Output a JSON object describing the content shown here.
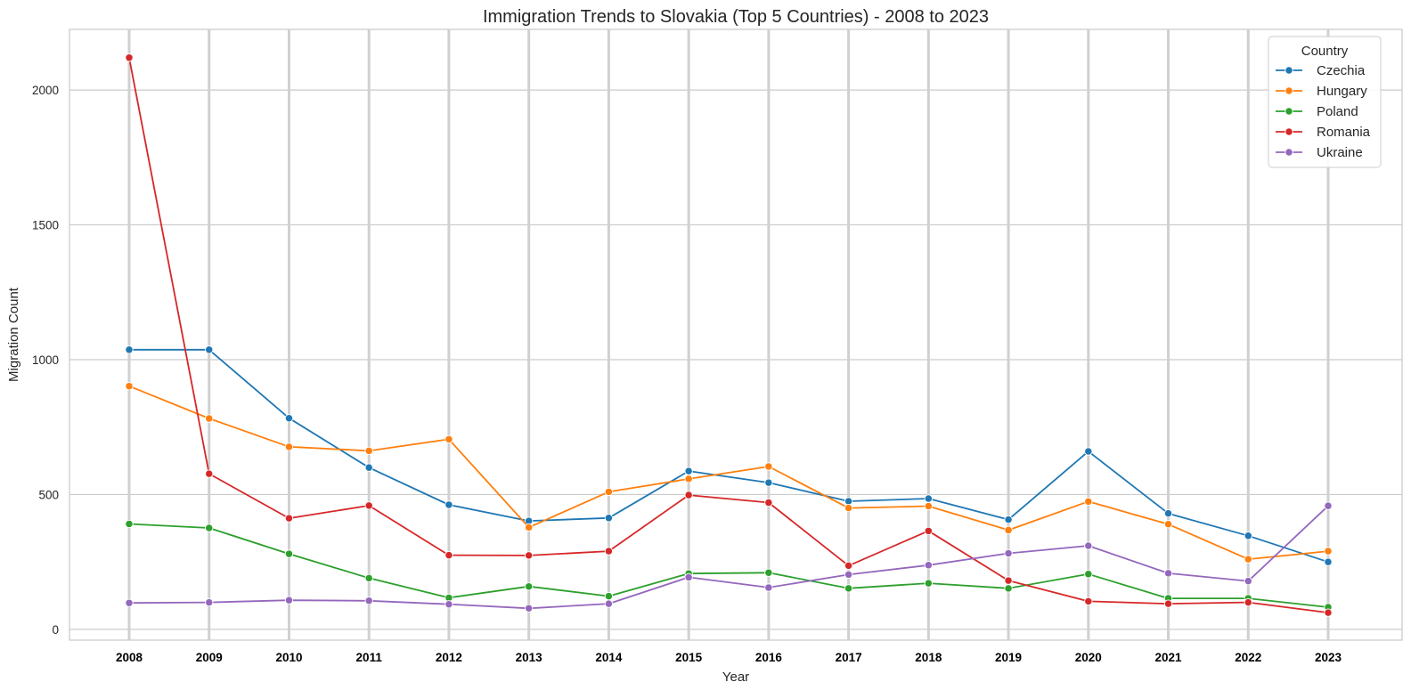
{
  "chart_data": {
    "type": "line",
    "title": "Immigration Trends to Slovakia (Top 5 Countries) - 2008 to 2023",
    "xlabel": "Year",
    "ylabel": "Migration Count",
    "x": [
      2008,
      2009,
      2010,
      2011,
      2012,
      2013,
      2014,
      2015,
      2016,
      2017,
      2018,
      2019,
      2020,
      2021,
      2022,
      2023
    ],
    "xticklabels": [
      "2008",
      "2009",
      "2010",
      "2011",
      "2012",
      "2013",
      "2014",
      "2015",
      "2016",
      "2017",
      "2018",
      "2019",
      "2020",
      "2021",
      "2022",
      "2023"
    ],
    "yticks": [
      0,
      500,
      1000,
      1500,
      2000
    ],
    "yticklabels": [
      "0",
      "500",
      "1000",
      "1500",
      "2000"
    ],
    "ylim": [
      -40,
      2225
    ],
    "grid": true,
    "legend": {
      "title": "Country",
      "position": "top-right"
    },
    "series": [
      {
        "name": "Czechia",
        "color": "#1f77b4",
        "values": [
          1037,
          1037,
          783,
          600,
          462,
          402,
          413,
          587,
          544,
          475,
          485,
          407,
          660,
          430,
          347,
          250
        ]
      },
      {
        "name": "Hungary",
        "color": "#ff7f0e",
        "values": [
          902,
          782,
          677,
          662,
          705,
          378,
          510,
          558,
          604,
          450,
          457,
          368,
          474,
          390,
          260,
          290
        ]
      },
      {
        "name": "Poland",
        "color": "#2ca02c",
        "values": [
          391,
          376,
          280,
          190,
          117,
          159,
          123,
          207,
          210,
          152,
          171,
          152,
          205,
          115,
          115,
          82
        ]
      },
      {
        "name": "Romania",
        "color": "#d62728",
        "values": [
          2120,
          577,
          412,
          459,
          275,
          274,
          290,
          498,
          470,
          236,
          365,
          181,
          104,
          95,
          100,
          62
        ]
      },
      {
        "name": "Ukraine",
        "color": "#9467bd",
        "values": [
          98,
          100,
          108,
          106,
          93,
          78,
          95,
          193,
          155,
          203,
          238,
          282,
          310,
          208,
          179,
          458
        ]
      }
    ]
  }
}
